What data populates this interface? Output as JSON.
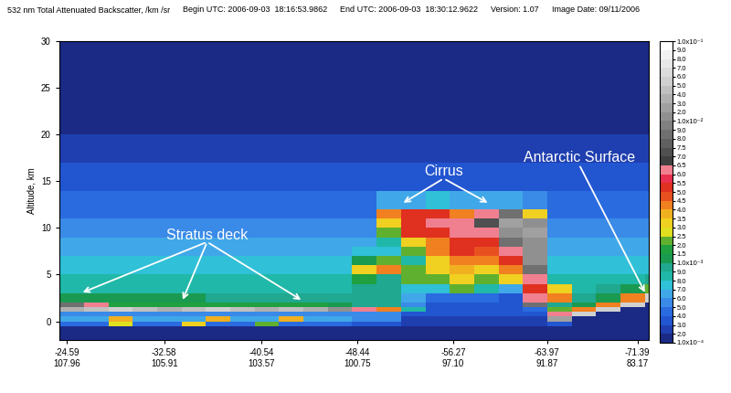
{
  "chart_data": {
    "type": "heatmap",
    "header": [
      "532 nm Total Attenuated Backscatter, /km /sr",
      "Begin UTC: 2006-09-03  18:16:53.9862",
      "End UTC: 2006-09-03  18:30:12.9622",
      "Version: 1.07",
      "Image Date: 09/11/2006"
    ],
    "y_label": "Altitude, km",
    "xlim": [
      -23.97,
      -72.32
    ],
    "xticks": [
      {
        "value": -24.59,
        "label": "-24.59\n107.96"
      },
      {
        "value": -32.58,
        "label": "-32.58\n105.91"
      },
      {
        "value": -40.54,
        "label": "-40.54\n103.57"
      },
      {
        "value": -48.44,
        "label": "-48.44\n100.75"
      },
      {
        "value": -56.27,
        "label": "-56.27\n97.10"
      },
      {
        "value": -63.97,
        "label": "-63.97\n91.87"
      },
      {
        "value": -71.39,
        "label": "-71.39\n83.17"
      }
    ],
    "ylim": [
      -2,
      30
    ],
    "yticks": [
      0,
      5,
      10,
      15,
      20,
      25,
      30
    ],
    "x_edges": [
      -23.97,
      -26,
      -28,
      -30,
      -32,
      -34,
      -36,
      -38,
      -40,
      -42,
      -44,
      -46,
      -48,
      -50,
      -52,
      -54,
      -56,
      -58,
      -60,
      -62,
      -64,
      -66,
      -68,
      -70,
      -72,
      -72.32
    ],
    "y_edges": [
      -2,
      -1,
      -0.5,
      0,
      0.5,
      1,
      1.5,
      2,
      3,
      4,
      5,
      6,
      7,
      8,
      9,
      10,
      11,
      12,
      14,
      17,
      20,
      25,
      30
    ],
    "cells": [
      [
        0.00011,
        0.00011,
        0.00011,
        0.00011,
        0.00011,
        0.00011,
        0.00011,
        0.00011,
        0.00011,
        0.00011,
        0.00011,
        0.00011,
        0.00011,
        0.00011,
        0.00011,
        0.00011,
        0.00011,
        0.00011,
        0.00011,
        0.00011,
        0.00011,
        0.00011,
        0.00011,
        0.00011,
        0.00011
      ],
      [
        0.00018,
        0.00018,
        0.00018,
        0.00018,
        0.00018,
        0.00018,
        0.00018,
        0.00018,
        0.00018,
        0.00018,
        0.00018,
        0.00018,
        0.00015,
        0.00015,
        0.00015,
        0.00015,
        0.00015,
        0.00015,
        0.00015,
        0.00015,
        0.00015,
        0.0001,
        0.0001,
        0.0001,
        0.0001
      ],
      [
        0.0004,
        0.0004,
        0.0025,
        0.0004,
        0.0004,
        0.003,
        0.0004,
        0.0004,
        0.002,
        0.0004,
        0.0004,
        0.0004,
        0.0003,
        0.0003,
        0.0002,
        0.0002,
        0.0002,
        0.0002,
        0.0002,
        0.0002,
        0.0003,
        0.0001,
        0.0001,
        0.0001,
        0.0001
      ],
      [
        0.0006,
        0.0006,
        0.0035,
        0.0006,
        0.0006,
        0.0006,
        0.0035,
        0.0006,
        0.0006,
        0.0035,
        0.0006,
        0.0006,
        0.0005,
        0.0005,
        0.00025,
        0.00025,
        0.00025,
        0.00025,
        0.00025,
        0.00025,
        0.02,
        0.0001,
        0.0001,
        0.0001,
        0.0001
      ],
      [
        0.0005,
        0.0005,
        0.0005,
        0.0005,
        0.0005,
        0.0005,
        0.0005,
        0.0005,
        0.0005,
        0.0005,
        0.0005,
        0.0005,
        0.0005,
        0.0005,
        0.0003,
        0.0003,
        0.0003,
        0.0003,
        0.0003,
        0.0003,
        0.006,
        0.05,
        0.0001,
        0.0001,
        0.0001
      ],
      [
        0.03,
        0.04,
        0.05,
        0.04,
        0.03,
        0.04,
        0.05,
        0.04,
        0.03,
        0.04,
        0.03,
        0.015,
        0.006,
        0.004,
        0.0008,
        0.0003,
        0.0003,
        0.0003,
        0.0003,
        0.0004,
        0.002,
        0.004,
        0.05,
        0.0001,
        0.0001
      ],
      [
        0.008,
        0.006,
        0.0015,
        0.0015,
        0.0015,
        0.0015,
        0.0015,
        0.0015,
        0.0015,
        0.0015,
        0.0015,
        0.0012,
        0.0009,
        0.0009,
        0.0005,
        0.0003,
        0.0003,
        0.0003,
        0.0003,
        0.008,
        0.0009,
        0.0012,
        0.004,
        0.05,
        0.0001
      ],
      [
        0.001,
        0.001,
        0.001,
        0.001,
        0.001,
        0.001,
        0.0009,
        0.0009,
        0.0009,
        0.0009,
        0.0009,
        0.0009,
        0.0009,
        0.0009,
        0.0006,
        0.0004,
        0.0004,
        0.0004,
        0.0003,
        0.006,
        0.004,
        0.0009,
        0.0011,
        0.004,
        0.05
      ],
      [
        0.00088,
        0.00088,
        0.00088,
        0.00088,
        0.00088,
        0.00088,
        0.00088,
        0.00088,
        0.00088,
        0.00088,
        0.00088,
        0.00088,
        0.0009,
        0.0009,
        0.0007,
        0.0007,
        0.002,
        0.0008,
        0.0006,
        0.005,
        0.003,
        0.00085,
        0.0009,
        0.0011,
        0.002
      ],
      [
        0.00082,
        0.00082,
        0.00082,
        0.00082,
        0.00082,
        0.00082,
        0.00082,
        0.00082,
        0.00082,
        0.00082,
        0.00082,
        0.00082,
        0.0015,
        0.0009,
        0.002,
        0.002,
        0.003,
        0.002,
        0.003,
        0.006,
        0.0008,
        0.0008,
        0.0008,
        0.0008,
        0.0009
      ],
      [
        0.00078,
        0.00078,
        0.00078,
        0.00078,
        0.00078,
        0.00078,
        0.00078,
        0.00078,
        0.00078,
        0.00078,
        0.00078,
        0.00078,
        0.003,
        0.004,
        0.002,
        0.003,
        0.0035,
        0.003,
        0.004,
        0.008,
        0.00075,
        0.00075,
        0.00075,
        0.00075,
        0.00075
      ],
      [
        0.00073,
        0.00073,
        0.00073,
        0.00073,
        0.00073,
        0.00073,
        0.00073,
        0.00073,
        0.00073,
        0.00073,
        0.00073,
        0.00073,
        0.0012,
        0.002,
        0.0008,
        0.003,
        0.004,
        0.004,
        0.005,
        0.01,
        0.0007,
        0.0007,
        0.0007,
        0.0007,
        0.0007
      ],
      [
        0.00068,
        0.00068,
        0.00068,
        0.00068,
        0.00068,
        0.00068,
        0.00068,
        0.00068,
        0.00068,
        0.00068,
        0.00068,
        0.00068,
        0.0007,
        0.0007,
        0.002,
        0.004,
        0.005,
        0.0045,
        0.006,
        0.012,
        0.00065,
        0.00065,
        0.00065,
        0.00065,
        0.00065
      ],
      [
        0.00063,
        0.00063,
        0.00063,
        0.00063,
        0.00063,
        0.00063,
        0.00063,
        0.00063,
        0.00063,
        0.00063,
        0.00063,
        0.00063,
        0.00063,
        0.0008,
        0.003,
        0.004,
        0.005,
        0.005,
        0.008,
        0.015,
        0.0006,
        0.0006,
        0.0006,
        0.0006,
        0.0006
      ],
      [
        0.00058,
        0.00058,
        0.00058,
        0.00058,
        0.00058,
        0.00058,
        0.00058,
        0.00058,
        0.00058,
        0.00058,
        0.00058,
        0.00058,
        0.00058,
        0.002,
        0.005,
        0.005,
        0.006,
        0.006,
        0.015,
        0.02,
        0.00055,
        0.00055,
        0.00055,
        0.00055,
        0.00055
      ],
      [
        0.00053,
        0.00053,
        0.00053,
        0.00053,
        0.00053,
        0.00053,
        0.00053,
        0.00053,
        0.00053,
        0.00053,
        0.00053,
        0.00053,
        0.00053,
        0.003,
        0.005,
        0.006,
        0.006,
        0.007,
        0.02,
        0.01,
        0.0005,
        0.0005,
        0.0005,
        0.0005,
        0.0005
      ],
      [
        0.00048,
        0.00048,
        0.00048,
        0.00048,
        0.00048,
        0.00048,
        0.00048,
        0.00048,
        0.00048,
        0.00048,
        0.00048,
        0.00048,
        0.00048,
        0.004,
        0.005,
        0.005,
        0.004,
        0.006,
        0.008,
        0.003,
        0.00045,
        0.00045,
        0.00045,
        0.00045,
        0.00045
      ],
      [
        0.00042,
        0.00042,
        0.00042,
        0.00042,
        0.00042,
        0.00042,
        0.00042,
        0.00042,
        0.00042,
        0.00042,
        0.00042,
        0.00042,
        0.00042,
        0.0006,
        0.0006,
        0.0007,
        0.0006,
        0.0006,
        0.0006,
        0.0005,
        0.0004,
        0.0004,
        0.0004,
        0.0004,
        0.0004
      ],
      [
        0.00033,
        0.00033,
        0.00033,
        0.00033,
        0.00033,
        0.00033,
        0.00033,
        0.00033,
        0.00033,
        0.00033,
        0.00033,
        0.00033,
        0.00033,
        0.00033,
        0.00033,
        0.00033,
        0.00033,
        0.00033,
        0.00033,
        0.00033,
        0.00033,
        0.00033,
        0.00033,
        0.00033,
        0.00033
      ],
      [
        0.00024,
        0.00024,
        0.00024,
        0.00024,
        0.00024,
        0.00024,
        0.00024,
        0.00024,
        0.00024,
        0.00024,
        0.00024,
        0.00024,
        0.00024,
        0.00024,
        0.00024,
        0.00024,
        0.00024,
        0.00024,
        0.00024,
        0.00024,
        0.00024,
        0.00024,
        0.00024,
        0.00024,
        0.00024
      ],
      [
        0.00015,
        0.00015,
        0.00015,
        0.00015,
        0.00015,
        0.00015,
        0.00015,
        0.00015,
        0.00015,
        0.00015,
        0.00015,
        0.00015,
        0.00015,
        0.00015,
        0.00015,
        0.00015,
        0.00015,
        0.00015,
        0.00015,
        0.00015,
        0.00015,
        0.00015,
        0.00015,
        0.00015,
        0.00015
      ],
      [
        0.00012,
        0.00012,
        0.00012,
        0.00012,
        0.00012,
        0.00012,
        0.00012,
        0.00012,
        0.00012,
        0.00012,
        0.00012,
        0.00012,
        0.00012,
        0.00012,
        0.00012,
        0.00012,
        0.00012,
        0.00012,
        0.00012,
        0.00012,
        0.00012,
        0.00012,
        0.00012,
        0.00012,
        0.00012
      ]
    ],
    "colorbar": {
      "range": [
        0.0001,
        0.1
      ],
      "ticks": [
        {
          "value": 0.0001,
          "label": "1.0x10⁻⁴"
        },
        {
          "value": 0.0002,
          "label": "2.0"
        },
        {
          "value": 0.0003,
          "label": "3.0"
        },
        {
          "value": 0.0004,
          "label": "4.0"
        },
        {
          "value": 0.0005,
          "label": "5.0"
        },
        {
          "value": 0.0006,
          "label": "6.0"
        },
        {
          "value": 0.0007,
          "label": "7.0"
        },
        {
          "value": 0.0008,
          "label": "8.0"
        },
        {
          "value": 0.0009,
          "label": "9.0"
        },
        {
          "value": 0.001,
          "label": "1.0x10⁻³"
        },
        {
          "value": 0.0015,
          "label": "1.5"
        },
        {
          "value": 0.002,
          "label": "2.0"
        },
        {
          "value": 0.0025,
          "label": "2.5"
        },
        {
          "value": 0.003,
          "label": "3.0"
        },
        {
          "value": 0.0035,
          "label": "3.5"
        },
        {
          "value": 0.004,
          "label": "4.0"
        },
        {
          "value": 0.0045,
          "label": "4.5"
        },
        {
          "value": 0.005,
          "label": "5.0"
        },
        {
          "value": 0.0055,
          "label": "5.5"
        },
        {
          "value": 0.006,
          "label": "6.0"
        },
        {
          "value": 0.0065,
          "label": "6.5"
        },
        {
          "value": 0.007,
          "label": "7.0"
        },
        {
          "value": 0.0075,
          "label": "7.5"
        },
        {
          "value": 0.008,
          "label": "8.0"
        },
        {
          "value": 0.009,
          "label": "9.0"
        },
        {
          "value": 0.01,
          "label": "1.0x10⁻²"
        },
        {
          "value": 0.02,
          "label": "2.0"
        },
        {
          "value": 0.03,
          "label": "3.0"
        },
        {
          "value": 0.04,
          "label": "4.0"
        },
        {
          "value": 0.05,
          "label": "5.0"
        },
        {
          "value": 0.06,
          "label": "6.0"
        },
        {
          "value": 0.07,
          "label": "7.0"
        },
        {
          "value": 0.08,
          "label": "8.0"
        },
        {
          "value": 0.09,
          "label": "9.0"
        },
        {
          "value": 0.1,
          "label": "1.0x10⁻¹"
        }
      ],
      "colors": [
        "#1b2a85",
        "#1f3fb0",
        "#2255d0",
        "#2a6be0",
        "#3a8ae8",
        "#40a8e8",
        "#30c0d8",
        "#20b8a8",
        "#20a890",
        "#1a9a50",
        "#20a040",
        "#60b030",
        "#e0e020",
        "#f0d020",
        "#f0b020",
        "#f08020",
        "#e85020",
        "#e03020",
        "#e83050",
        "#f08090",
        "#404040",
        "#505050",
        "#606060",
        "#707070",
        "#808080",
        "#909090",
        "#a0a0a0",
        "#b0b0b0",
        "#c0c0c0",
        "#d0d0d0",
        "#dcdcdc",
        "#e8e8e8",
        "#f2f2f2",
        "#ffffff"
      ]
    },
    "annotations": [
      {
        "text": "Stratus deck",
        "x": -36.1,
        "y": 8.5,
        "arrows_to": [
          [
            -25.9,
            3.1
          ],
          [
            -34.1,
            2.3
          ],
          [
            -43.8,
            2.3
          ]
        ]
      },
      {
        "text": "Cirrus",
        "x": -55.5,
        "y": 15.3,
        "arrows_to": [
          [
            -52.2,
            12.7
          ],
          [
            -59.1,
            12.7
          ]
        ]
      },
      {
        "text": "Antarctic Surface",
        "x": -66.6,
        "y": 16.8,
        "arrows_to": [
          [
            -72.0,
            3.1
          ]
        ]
      }
    ]
  }
}
